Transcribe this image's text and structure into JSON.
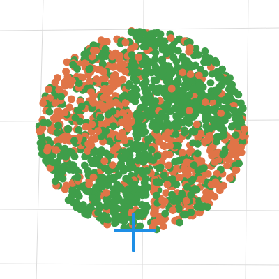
{
  "scene": {
    "background": "#ffffff",
    "grid_color": "#dcdcdc",
    "team_colors": {
      "green": "#3f9e4a",
      "orange": "#e07447"
    },
    "cursor": {
      "icon": "crosshair-icon",
      "color": "#1e8fe6"
    }
  }
}
